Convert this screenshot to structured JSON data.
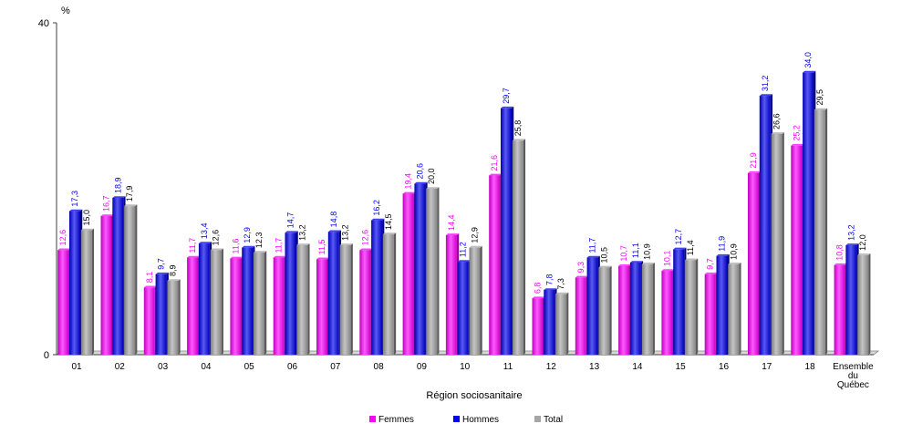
{
  "chart_data": {
    "type": "bar",
    "yunit": "%",
    "xlabel": "Région sociosanitaire",
    "ylim": [
      0,
      40
    ],
    "yticks": [
      "0",
      "40"
    ],
    "categories": [
      "01",
      "02",
      "03",
      "04",
      "05",
      "06",
      "07",
      "08",
      "09",
      "10",
      "11",
      "12",
      "13",
      "14",
      "15",
      "16",
      "17",
      "18",
      "Ensemble du Québec"
    ],
    "category_lines": [
      [
        "01"
      ],
      [
        "02"
      ],
      [
        "03"
      ],
      [
        "04"
      ],
      [
        "05"
      ],
      [
        "06"
      ],
      [
        "07"
      ],
      [
        "08"
      ],
      [
        "09"
      ],
      [
        "10"
      ],
      [
        "11"
      ],
      [
        "12"
      ],
      [
        "13"
      ],
      [
        "14"
      ],
      [
        "15"
      ],
      [
        "16"
      ],
      [
        "17"
      ],
      [
        "18"
      ],
      [
        "Ensemble",
        "du",
        "Québec"
      ]
    ],
    "series": [
      {
        "name": "Femmes",
        "color": "#ff00ff",
        "label_color": "#ff00ff",
        "values": [
          12.6,
          16.7,
          8.1,
          11.7,
          11.6,
          11.7,
          11.5,
          12.6,
          19.4,
          14.4,
          21.6,
          6.8,
          9.3,
          10.7,
          10.1,
          9.7,
          21.9,
          25.2,
          10.8
        ],
        "labels": [
          "12,6",
          "16,7",
          "8,1",
          "11,7",
          "11,6",
          "11,7",
          "11,5",
          "12,6",
          "19,4",
          "14,4",
          "21,6",
          "6,8",
          "9,3",
          "10,7",
          "10,1",
          "9,7",
          "21,9",
          "25,2",
          "10,8"
        ]
      },
      {
        "name": "Hommes",
        "color": "#0000ee",
        "label_color": "#0000ee",
        "values": [
          17.3,
          18.9,
          9.7,
          13.4,
          12.9,
          14.7,
          14.8,
          16.2,
          20.6,
          11.2,
          29.7,
          7.8,
          11.7,
          11.1,
          12.7,
          11.9,
          31.2,
          34.0,
          13.2
        ],
        "labels": [
          "17,3",
          "18,9",
          "9,7",
          "13,4",
          "12,9",
          "14,7",
          "14,8",
          "16,2",
          "20,6",
          "11,2",
          "29,7",
          "7,8",
          "11,7",
          "11,1",
          "12,7",
          "11,9",
          "31,2",
          "34,0",
          "13,2"
        ]
      },
      {
        "name": "Total",
        "color": "#a6a6a6",
        "label_color": "#000000",
        "values": [
          15.0,
          17.9,
          8.9,
          12.6,
          12.3,
          13.2,
          13.2,
          14.5,
          20.0,
          12.9,
          25.8,
          7.3,
          10.5,
          10.9,
          11.4,
          10.9,
          26.6,
          29.5,
          12.0
        ],
        "labels": [
          "15,0",
          "17,9",
          "8,9",
          "12,6",
          "12,3",
          "13,2",
          "13,2",
          "14,5",
          "20,0",
          "12,9",
          "25,8",
          "7,3",
          "10,5",
          "10,9",
          "11,4",
          "10,9",
          "26,6",
          "29,5",
          "12,0"
        ]
      }
    ],
    "legend_position": "bottom",
    "grid": false
  }
}
